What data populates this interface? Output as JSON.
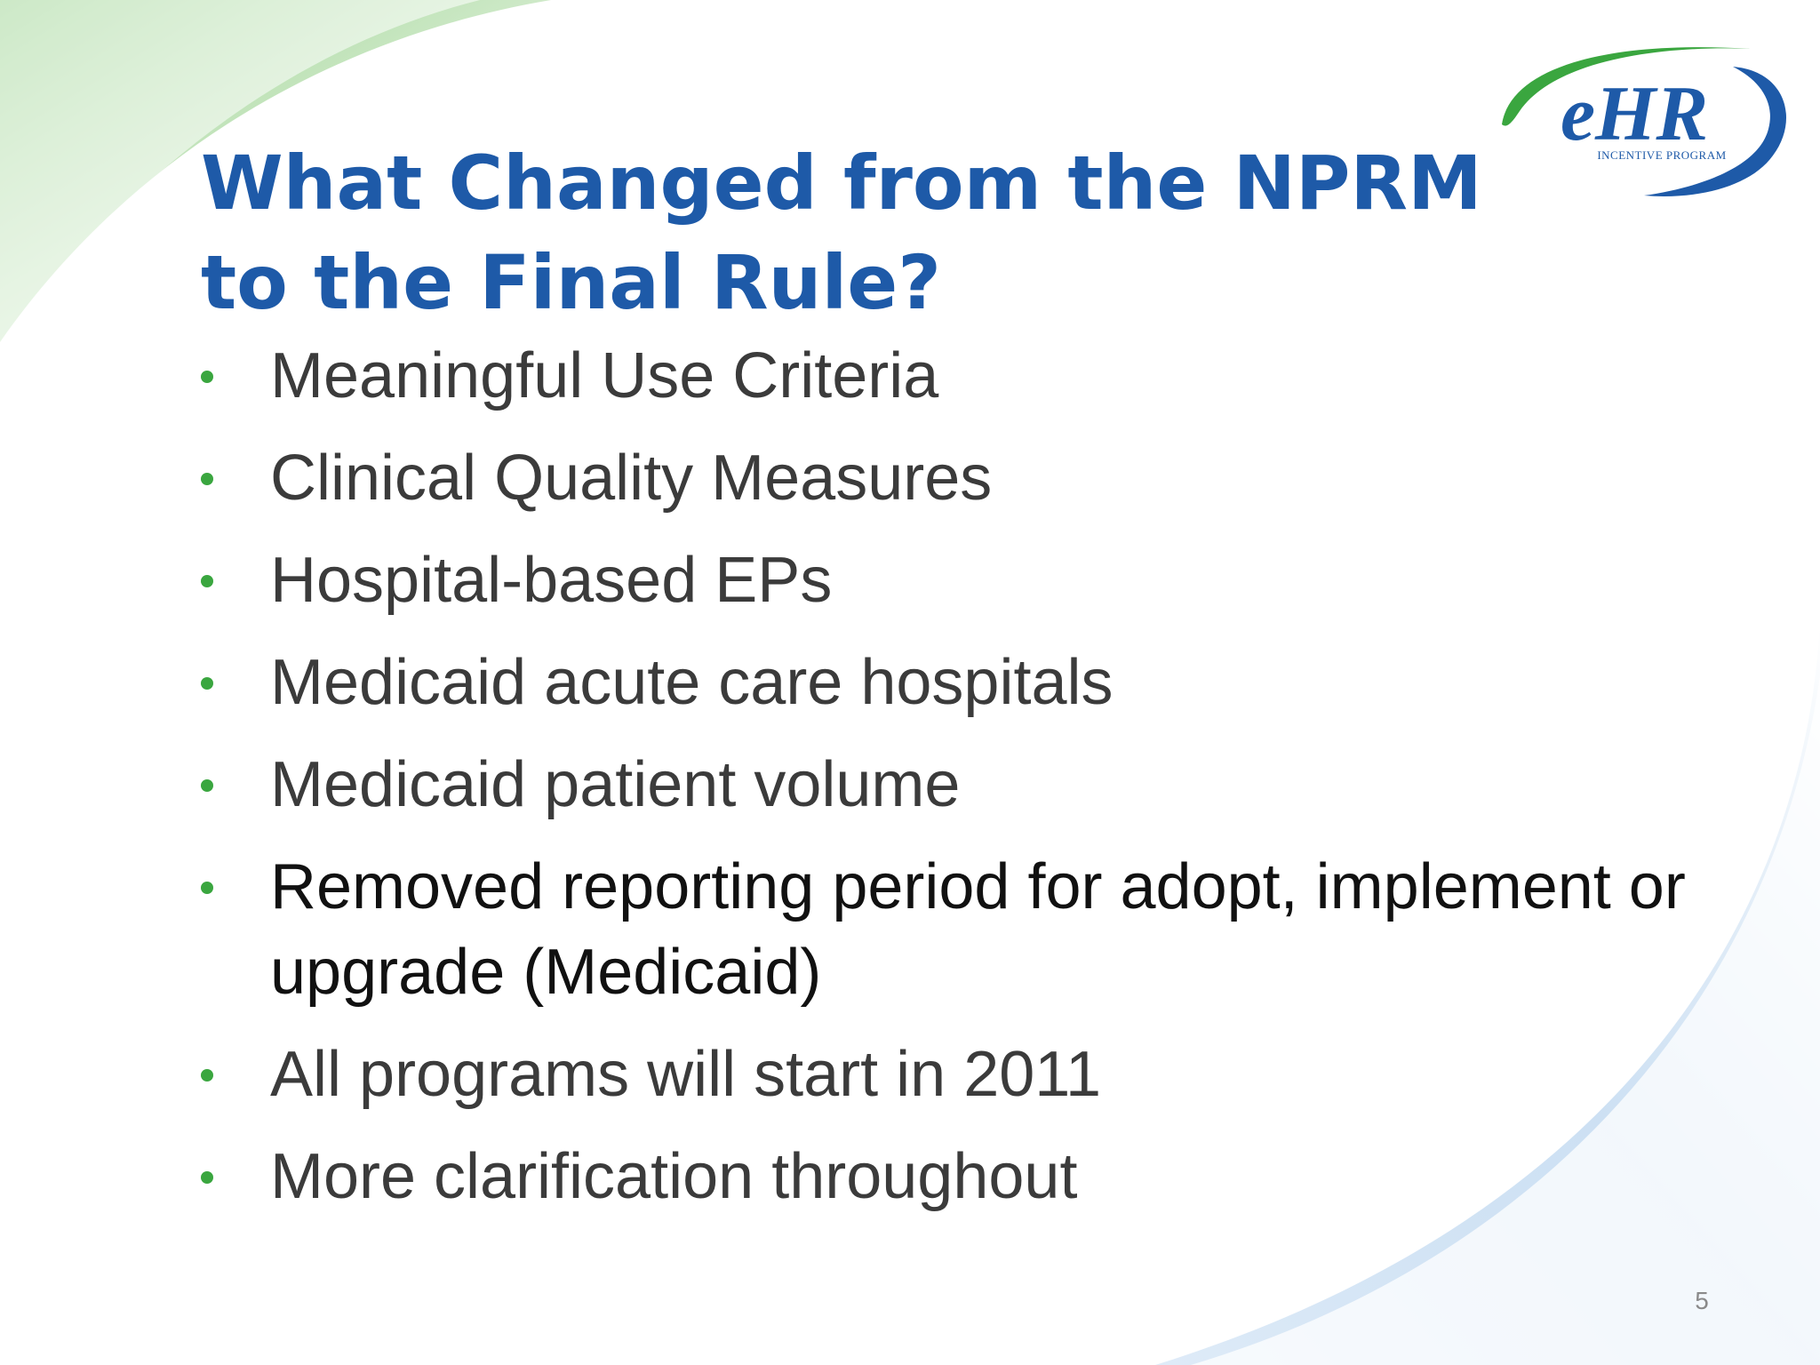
{
  "slide": {
    "title": "What Changed from the NPRM to the Final Rule?",
    "page_number": "5"
  },
  "logo": {
    "mark_text": "eHR",
    "tagline": "INCENTIVE PROGRAM"
  },
  "bullets": [
    {
      "text": "Meaningful Use Criteria"
    },
    {
      "text": "Clinical Quality Measures"
    },
    {
      "text": "Hospital-based EPs"
    },
    {
      "text": "Medicaid acute care hospitals"
    },
    {
      "text": "Medicaid patient volume"
    },
    {
      "text": "Removed reporting period for adopt, implement or upgrade (Medicaid)"
    },
    {
      "text": "All programs will start in 2011"
    },
    {
      "text": "More clarification throughout"
    }
  ],
  "colors": {
    "title": "#1e5aa8",
    "bullet_marker": "#3aa63f",
    "body_text": "#3b3b3b",
    "logo_blue": "#1e5aa8",
    "logo_green": "#3aa63f"
  }
}
